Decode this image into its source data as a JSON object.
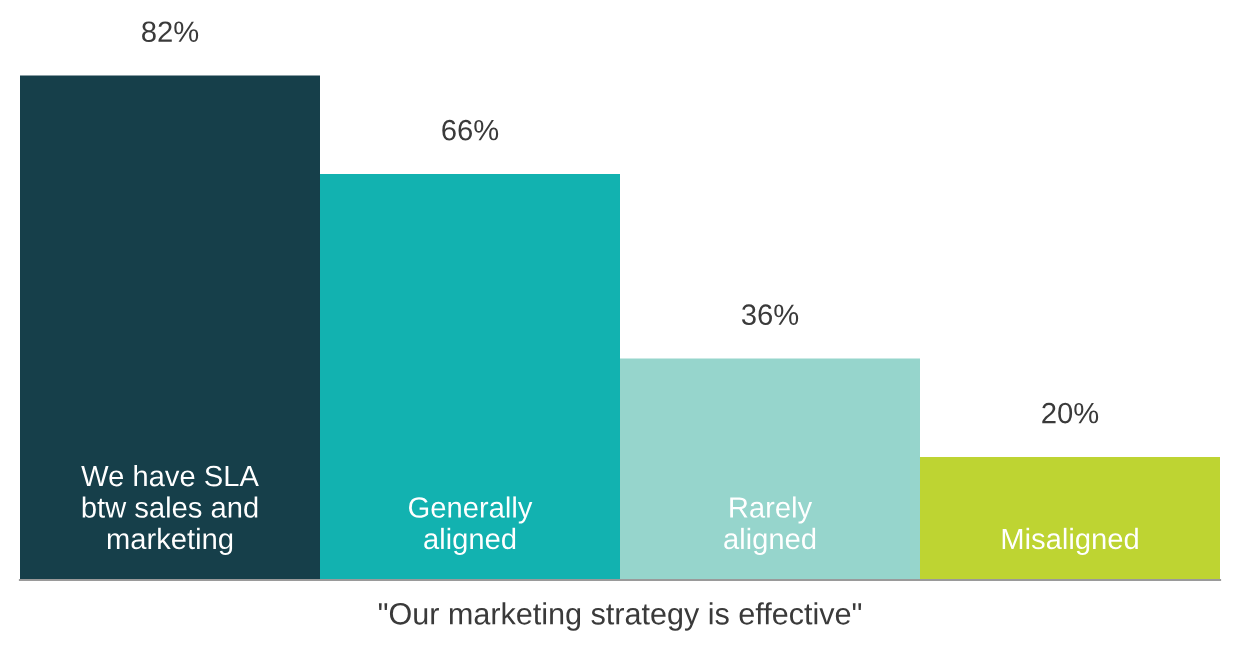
{
  "chart_data": {
    "type": "bar",
    "categories": [
      "We have SLA\nbtw sales and\nmarketing",
      "Generally\naligned",
      "Rarely\naligned",
      "Misaligned"
    ],
    "values": [
      82,
      66,
      36,
      20
    ],
    "value_labels": [
      "82%",
      "66%",
      "36%",
      "20%"
    ],
    "colors": [
      "#163f4a",
      "#12b2b0",
      "#96d5cc",
      "#bed432"
    ],
    "xlabel": "\"Our marketing strategy is effective\""
  }
}
